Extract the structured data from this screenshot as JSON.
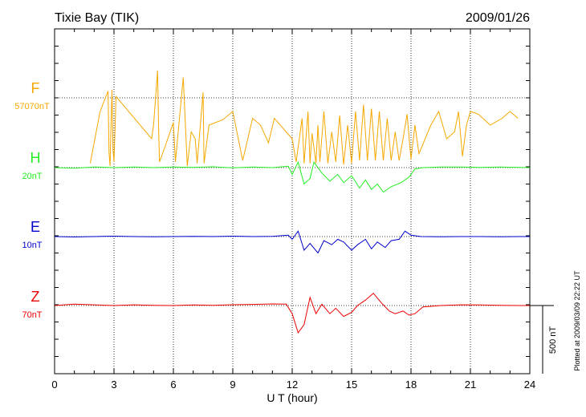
{
  "header": {
    "station": "Tixie Bay (TIK)",
    "date": "2009/01/26"
  },
  "footer": {
    "plotted_note": "Plotted at 2009/03/09 22:22 UT",
    "scale_bar_label": "500 nT"
  },
  "chart_data": {
    "type": "line",
    "xlabel": "U T (hour)",
    "xlim": [
      0,
      24
    ],
    "x_ticks": [
      0,
      3,
      6,
      9,
      12,
      15,
      18,
      21,
      24
    ],
    "x_tick_labels": [
      "0",
      "3",
      "6",
      "9",
      "12",
      "15",
      "18",
      "21",
      "24"
    ],
    "scale_bar_nT": 500,
    "grid": true,
    "series": [
      {
        "name": "F",
        "offset_label": "57070nT",
        "color": "#f5a800",
        "baseline_nT": 57070,
        "points": [
          [
            1.8,
            -480
          ],
          [
            2.3,
            -100
          ],
          [
            2.7,
            50
          ],
          [
            2.75,
            -400
          ],
          [
            2.8,
            -500
          ],
          [
            2.85,
            -200
          ],
          [
            2.9,
            60
          ],
          [
            2.95,
            -380
          ],
          [
            3.0,
            -470
          ],
          [
            3.05,
            -250
          ],
          [
            3.1,
            10
          ],
          [
            4.9,
            -300
          ],
          [
            5.0,
            -200
          ],
          [
            5.2,
            200
          ],
          [
            5.25,
            -200
          ],
          [
            5.3,
            -470
          ],
          [
            5.6,
            -350
          ],
          [
            6.0,
            -180
          ],
          [
            6.1,
            -470
          ],
          [
            6.5,
            150
          ],
          [
            6.7,
            -500
          ],
          [
            6.9,
            -250
          ],
          [
            7.1,
            -300
          ],
          [
            7.2,
            -480
          ],
          [
            7.5,
            40
          ],
          [
            7.55,
            -480
          ],
          [
            7.8,
            -200
          ],
          [
            8.5,
            -160
          ],
          [
            9.0,
            -100
          ],
          [
            9.5,
            -460
          ],
          [
            10.0,
            -150
          ],
          [
            10.4,
            -200
          ],
          [
            10.8,
            -330
          ],
          [
            11.1,
            -150
          ],
          [
            12.0,
            -300
          ],
          [
            12.2,
            -470
          ],
          [
            12.5,
            -150
          ],
          [
            12.6,
            -480
          ],
          [
            12.8,
            -100
          ],
          [
            12.9,
            -480
          ],
          [
            13.0,
            -260
          ],
          [
            13.2,
            -480
          ],
          [
            13.3,
            -200
          ],
          [
            13.4,
            -470
          ],
          [
            13.6,
            -100
          ],
          [
            13.8,
            -480
          ],
          [
            14.0,
            -250
          ],
          [
            14.2,
            -470
          ],
          [
            14.4,
            -130
          ],
          [
            14.6,
            -490
          ],
          [
            14.8,
            -200
          ],
          [
            15.0,
            -480
          ],
          [
            15.2,
            -100
          ],
          [
            15.4,
            -460
          ],
          [
            15.6,
            -50
          ],
          [
            15.8,
            -460
          ],
          [
            16.0,
            -80
          ],
          [
            16.2,
            -460
          ],
          [
            16.4,
            -100
          ],
          [
            16.6,
            -460
          ],
          [
            16.8,
            -150
          ],
          [
            17.0,
            -460
          ],
          [
            17.2,
            -250
          ],
          [
            17.4,
            -460
          ],
          [
            17.6,
            -300
          ],
          [
            17.8,
            -120
          ],
          [
            18.0,
            -450
          ],
          [
            18.2,
            -200
          ],
          [
            18.4,
            -410
          ],
          [
            19.0,
            -200
          ],
          [
            19.4,
            -100
          ],
          [
            19.8,
            -300
          ],
          [
            20.2,
            -250
          ],
          [
            20.4,
            -100
          ],
          [
            20.6,
            -430
          ],
          [
            20.8,
            -200
          ],
          [
            21.0,
            -100
          ],
          [
            21.4,
            -120
          ],
          [
            22.0,
            -200
          ],
          [
            22.6,
            -150
          ],
          [
            23.0,
            -100
          ],
          [
            23.4,
            -150
          ]
        ]
      },
      {
        "name": "H",
        "offset_label": "20nT",
        "color": "#22ee22",
        "baseline_nT": 20,
        "points": [
          [
            0.0,
            0
          ],
          [
            1.0,
            -4
          ],
          [
            2.0,
            5
          ],
          [
            3.0,
            0
          ],
          [
            4.0,
            4
          ],
          [
            5.0,
            0
          ],
          [
            6.0,
            5
          ],
          [
            7.0,
            2
          ],
          [
            8.0,
            6
          ],
          [
            9.0,
            -2
          ],
          [
            10.0,
            4
          ],
          [
            11.0,
            0
          ],
          [
            11.8,
            10
          ],
          [
            12.0,
            -50
          ],
          [
            12.3,
            40
          ],
          [
            12.6,
            -120
          ],
          [
            12.9,
            -80
          ],
          [
            13.1,
            40
          ],
          [
            13.5,
            -40
          ],
          [
            13.9,
            -100
          ],
          [
            14.3,
            -50
          ],
          [
            14.6,
            -110
          ],
          [
            15.0,
            -60
          ],
          [
            15.4,
            -150
          ],
          [
            15.7,
            -90
          ],
          [
            16.0,
            -160
          ],
          [
            16.3,
            -120
          ],
          [
            16.6,
            -180
          ],
          [
            17.0,
            -140
          ],
          [
            17.5,
            -110
          ],
          [
            17.9,
            -70
          ],
          [
            18.2,
            -10
          ],
          [
            18.6,
            0
          ],
          [
            19.5,
            5
          ],
          [
            20.5,
            4
          ],
          [
            21.5,
            2
          ],
          [
            22.5,
            4
          ],
          [
            23.5,
            1
          ],
          [
            24.0,
            0
          ]
        ]
      },
      {
        "name": "E",
        "offset_label": "10nT",
        "color": "#0000cc",
        "baseline_nT": 10,
        "points": [
          [
            0.0,
            0
          ],
          [
            1.0,
            -3
          ],
          [
            2.0,
            0
          ],
          [
            3.0,
            3
          ],
          [
            4.0,
            0
          ],
          [
            5.0,
            -2
          ],
          [
            6.0,
            0
          ],
          [
            7.0,
            2
          ],
          [
            8.0,
            0
          ],
          [
            9.0,
            3
          ],
          [
            10.0,
            0
          ],
          [
            11.0,
            2
          ],
          [
            11.8,
            10
          ],
          [
            12.0,
            -20
          ],
          [
            12.3,
            40
          ],
          [
            12.6,
            -100
          ],
          [
            12.9,
            -50
          ],
          [
            13.3,
            -120
          ],
          [
            13.6,
            -30
          ],
          [
            14.0,
            -60
          ],
          [
            14.3,
            -20
          ],
          [
            14.6,
            -40
          ],
          [
            15.0,
            -100
          ],
          [
            15.3,
            -60
          ],
          [
            15.7,
            -20
          ],
          [
            16.0,
            -90
          ],
          [
            16.3,
            -40
          ],
          [
            16.7,
            -80
          ],
          [
            17.0,
            -30
          ],
          [
            17.4,
            -20
          ],
          [
            17.7,
            40
          ],
          [
            18.0,
            10
          ],
          [
            18.5,
            0
          ],
          [
            19.5,
            -2
          ],
          [
            20.5,
            0
          ],
          [
            21.5,
            0
          ],
          [
            22.5,
            -2
          ],
          [
            23.5,
            0
          ],
          [
            24.0,
            0
          ]
        ]
      },
      {
        "name": "Z",
        "offset_label": "70nT",
        "color": "#ee0000",
        "baseline_nT": 70,
        "points": [
          [
            0.0,
            0
          ],
          [
            1.0,
            10
          ],
          [
            2.0,
            5
          ],
          [
            3.0,
            0
          ],
          [
            4.0,
            5
          ],
          [
            5.0,
            2
          ],
          [
            6.0,
            0
          ],
          [
            7.0,
            4
          ],
          [
            8.0,
            2
          ],
          [
            9.0,
            6
          ],
          [
            10.0,
            8
          ],
          [
            11.0,
            12
          ],
          [
            11.7,
            10
          ],
          [
            12.0,
            -60
          ],
          [
            12.3,
            -200
          ],
          [
            12.6,
            -140
          ],
          [
            12.9,
            60
          ],
          [
            13.2,
            -60
          ],
          [
            13.5,
            10
          ],
          [
            13.9,
            -60
          ],
          [
            14.2,
            -20
          ],
          [
            14.6,
            -80
          ],
          [
            15.0,
            -50
          ],
          [
            15.3,
            0
          ],
          [
            15.7,
            40
          ],
          [
            16.1,
            90
          ],
          [
            16.5,
            20
          ],
          [
            16.9,
            -40
          ],
          [
            17.2,
            -60
          ],
          [
            17.6,
            -40
          ],
          [
            17.9,
            -70
          ],
          [
            18.2,
            -60
          ],
          [
            18.6,
            -10
          ],
          [
            19.5,
            0
          ],
          [
            20.5,
            5
          ],
          [
            21.5,
            4
          ],
          [
            22.5,
            2
          ],
          [
            23.5,
            0
          ],
          [
            24.0,
            0
          ]
        ]
      }
    ]
  }
}
